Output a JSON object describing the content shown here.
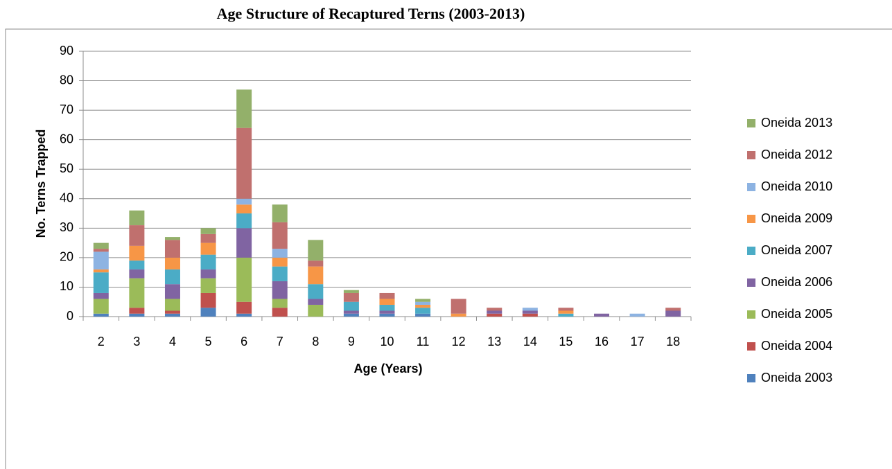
{
  "chart_data": {
    "type": "bar",
    "stacked": true,
    "title": "Age Structure of Recaptured Terns (2003-2013)",
    "x_label": "Age (Years)",
    "y_label": "No. Terns Trapped",
    "categories": [
      "2",
      "3",
      "4",
      "5",
      "6",
      "7",
      "8",
      "9",
      "10",
      "11",
      "12",
      "13",
      "14",
      "15",
      "16",
      "17",
      "18"
    ],
    "ylim": [
      0,
      90
    ],
    "yticks": [
      0,
      10,
      20,
      30,
      40,
      50,
      60,
      70,
      80,
      90
    ],
    "grid": true,
    "legend": "right",
    "series": [
      {
        "name": "Oneida 2003",
        "color": "#4f81bd",
        "values": [
          1,
          1,
          1,
          3,
          1,
          0,
          0,
          1,
          1,
          1,
          0,
          0,
          0,
          0,
          0,
          0,
          0
        ]
      },
      {
        "name": "Oneida 2004",
        "color": "#c0504d",
        "values": [
          0,
          2,
          1,
          5,
          4,
          3,
          0,
          0,
          0,
          0,
          0,
          1,
          1,
          0,
          0,
          0,
          0
        ]
      },
      {
        "name": "Oneida 2005",
        "color": "#9bbb59",
        "values": [
          5,
          10,
          4,
          5,
          15,
          3,
          4,
          0,
          0,
          0,
          0,
          0,
          0,
          0,
          0,
          0,
          0
        ]
      },
      {
        "name": "Oneida 2006",
        "color": "#8064a2",
        "values": [
          2,
          3,
          5,
          3,
          10,
          6,
          2,
          1,
          1,
          0,
          0,
          1,
          1,
          0,
          1,
          0,
          2
        ]
      },
      {
        "name": "Oneida 2007",
        "color": "#4bacc6",
        "values": [
          7,
          3,
          5,
          5,
          5,
          5,
          5,
          3,
          2,
          2,
          0,
          0,
          0,
          1,
          0,
          0,
          0
        ]
      },
      {
        "name": "Oneida 2009",
        "color": "#f79646",
        "values": [
          1,
          5,
          4,
          4,
          3,
          3,
          6,
          0,
          2,
          1,
          1,
          0,
          0,
          1,
          0,
          0,
          0
        ]
      },
      {
        "name": "Oneida 2010",
        "color": "#8db3e2",
        "values": [
          6,
          0,
          0,
          0,
          2,
          3,
          0,
          0,
          0,
          1,
          0,
          0,
          1,
          0,
          0,
          1,
          0
        ]
      },
      {
        "name": "Oneida 2012",
        "color": "#c0706e",
        "values": [
          1,
          7,
          6,
          3,
          24,
          9,
          2,
          3,
          2,
          0,
          5,
          1,
          0,
          1,
          0,
          0,
          1
        ]
      },
      {
        "name": "Oneida 2013",
        "color": "#93b06a",
        "values": [
          2,
          5,
          1,
          2,
          13,
          6,
          7,
          1,
          0,
          1,
          0,
          0,
          0,
          0,
          0,
          0,
          0
        ]
      }
    ]
  }
}
